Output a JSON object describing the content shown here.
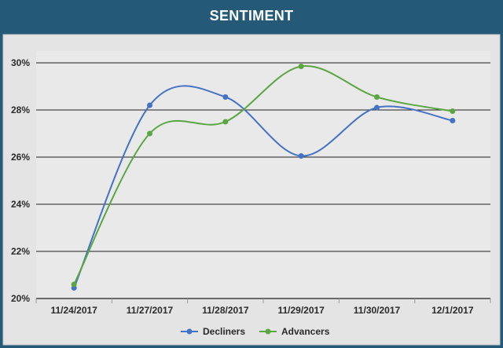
{
  "chart_data": {
    "type": "line",
    "title": "SENTIMENT",
    "xlabel": "",
    "ylabel": "",
    "categories": [
      "11/24/2017",
      "11/27/2017",
      "11/28/2017",
      "11/29/2017",
      "11/30/2017",
      "12/1/2017"
    ],
    "ylim": [
      20,
      30
    ],
    "yticks": [
      20,
      22,
      24,
      26,
      28,
      30
    ],
    "ytick_labels": [
      "20%",
      "22%",
      "24%",
      "26%",
      "28%",
      "30%"
    ],
    "grid": true,
    "legend_position": "bottom",
    "smooth": true,
    "series": [
      {
        "name": "Decliners",
        "color": "#4472c4",
        "values": [
          20.45,
          28.2,
          28.55,
          26.05,
          28.1,
          27.55
        ]
      },
      {
        "name": "Advancers",
        "color": "#5aa641",
        "values": [
          20.6,
          27.0,
          27.5,
          29.85,
          28.55,
          27.95
        ]
      }
    ]
  }
}
